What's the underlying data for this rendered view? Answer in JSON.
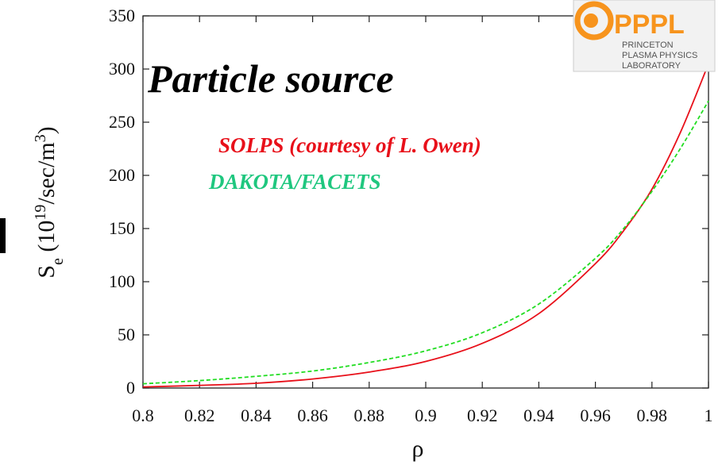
{
  "logo": {
    "name": "PPPL",
    "line1": "PRINCETON",
    "line2": "PLASMA PHYSICS",
    "line3": "LABORATORY",
    "color": "#f7941d"
  },
  "chart_data": {
    "type": "line",
    "title": "Particle source",
    "xlabel": "ρ",
    "ylabel_parts": {
      "base": "S",
      "sub": "e",
      "pre": " (10",
      "exp": "19",
      "mid": "/sec/m",
      "cube": "3",
      "post": ")"
    },
    "xlim": [
      0.8,
      1.0
    ],
    "ylim": [
      0,
      350
    ],
    "xticks": [
      "0.8",
      "0.82",
      "0.84",
      "0.86",
      "0.88",
      "0.9",
      "0.92",
      "0.94",
      "0.96",
      "0.98",
      "1"
    ],
    "xtick_values": [
      0.8,
      0.82,
      0.84,
      0.86,
      0.88,
      0.9,
      0.92,
      0.94,
      0.96,
      0.98,
      1.0
    ],
    "yticks": [
      "0",
      "50",
      "100",
      "150",
      "200",
      "250",
      "300",
      "350"
    ],
    "ytick_values": [
      0,
      50,
      100,
      150,
      200,
      250,
      300,
      350
    ],
    "legend_placement": "top-left",
    "series": [
      {
        "name": "SOLPS  (courtesy of L. Owen)",
        "color": "#e8101a",
        "dash": "solid",
        "x": [
          0.8,
          0.82,
          0.84,
          0.86,
          0.88,
          0.9,
          0.92,
          0.94,
          0.96,
          0.97,
          0.98,
          0.99,
          1.0
        ],
        "y": [
          1,
          2.5,
          4.5,
          8.5,
          15,
          25,
          42,
          70,
          117,
          148,
          187,
          240,
          305
        ]
      },
      {
        "name": "DAKOTA/FACETS",
        "color": "#22dd22",
        "dash": "dashed",
        "x": [
          0.8,
          0.82,
          0.84,
          0.86,
          0.88,
          0.9,
          0.92,
          0.94,
          0.96,
          0.97,
          0.98,
          0.99,
          1.0
        ],
        "y": [
          4,
          7,
          11,
          16,
          24,
          35,
          52,
          79,
          122,
          150,
          185,
          225,
          270
        ]
      }
    ]
  }
}
